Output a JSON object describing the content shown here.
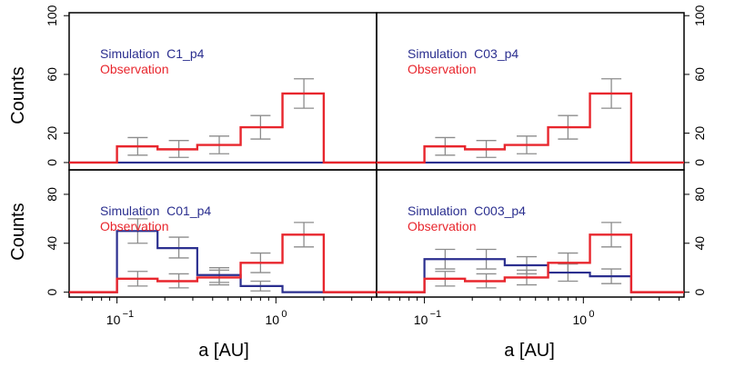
{
  "colors": {
    "simulation": "#2b2f8f",
    "observation": "#e8262d",
    "error_bar": "#8c8c8c",
    "frame": "#000000"
  },
  "chart_data": [
    {
      "type": "step-histogram",
      "panel": "top-left",
      "x_scale": "log",
      "xlim": [
        0.05,
        4.3
      ],
      "ylim": [
        -5,
        102
      ],
      "y_ticks": [
        "0",
        "20",
        "60",
        "100"
      ],
      "y_tick_values": [
        0,
        20,
        60,
        100
      ],
      "ylabel": "Counts",
      "bin_edges": [
        0.1,
        0.18,
        0.32,
        0.6,
        1.1,
        2.0
      ],
      "series": [
        {
          "name": "Simulation  C1_p4",
          "values": [
            0,
            0,
            0,
            0,
            0
          ]
        },
        {
          "name": "Observation",
          "values": [
            11,
            9,
            12,
            24,
            47
          ]
        }
      ],
      "error_bars": [
        {
          "x": 0.135,
          "center": 11,
          "low": 5,
          "high": 17
        },
        {
          "x": 0.245,
          "center": 9,
          "low": 3.5,
          "high": 15
        },
        {
          "x": 0.44,
          "center": 12,
          "low": 6,
          "high": 18
        },
        {
          "x": 0.8,
          "center": 24,
          "low": 16,
          "high": 32
        },
        {
          "x": 1.5,
          "center": 47,
          "low": 37,
          "high": 57
        }
      ]
    },
    {
      "type": "step-histogram",
      "panel": "top-right",
      "x_scale": "log",
      "xlim": [
        0.05,
        4.3
      ],
      "ylim": [
        -5,
        102
      ],
      "y_ticks": [
        "0",
        "20",
        "60",
        "100"
      ],
      "y_tick_values": [
        0,
        20,
        60,
        100
      ],
      "bin_edges": [
        0.1,
        0.18,
        0.32,
        0.6,
        1.1,
        2.0
      ],
      "series": [
        {
          "name": "Simulation  C03_p4",
          "values": [
            0,
            0,
            0,
            0,
            0
          ]
        },
        {
          "name": "Observation",
          "values": [
            11,
            9,
            12,
            24,
            47
          ]
        }
      ],
      "error_bars": [
        {
          "x": 0.135,
          "center": 11,
          "low": 5,
          "high": 17
        },
        {
          "x": 0.245,
          "center": 9,
          "low": 3.5,
          "high": 15
        },
        {
          "x": 0.44,
          "center": 12,
          "low": 6,
          "high": 18
        },
        {
          "x": 0.8,
          "center": 24,
          "low": 16,
          "high": 32
        },
        {
          "x": 1.5,
          "center": 47,
          "low": 37,
          "high": 57
        }
      ]
    },
    {
      "type": "step-histogram",
      "panel": "bottom-left",
      "x_scale": "log",
      "xlim": [
        0.05,
        4.3
      ],
      "ylim": [
        -4,
        100
      ],
      "y_ticks": [
        "0",
        "40",
        "80"
      ],
      "y_tick_values": [
        0,
        40,
        80
      ],
      "x_ticks": [
        "10",
        "10"
      ],
      "x_tick_exponents": [
        "−1",
        "0"
      ],
      "x_tick_values": [
        0.1,
        1
      ],
      "xlabel": "a [AU]",
      "ylabel": "Counts",
      "bin_edges": [
        0.1,
        0.18,
        0.32,
        0.6,
        1.1,
        2.0
      ],
      "series": [
        {
          "name": "Simulation  C01_p4",
          "values": [
            50,
            36,
            14,
            5,
            0
          ]
        },
        {
          "name": "Observation",
          "values": [
            11,
            9,
            12,
            24,
            47
          ]
        }
      ],
      "error_bars": [
        {
          "x": 0.135,
          "center": 50,
          "low": 40,
          "high": 60
        },
        {
          "x": 0.245,
          "center": 36,
          "low": 28,
          "high": 45
        },
        {
          "x": 0.44,
          "center": 14,
          "low": 8,
          "high": 20
        },
        {
          "x": 0.8,
          "center": 5,
          "low": 1,
          "high": 9
        },
        {
          "x": 0.135,
          "center": 11,
          "low": 5,
          "high": 17
        },
        {
          "x": 0.245,
          "center": 9,
          "low": 3.5,
          "high": 15
        },
        {
          "x": 0.44,
          "center": 12,
          "low": 6,
          "high": 18
        },
        {
          "x": 0.8,
          "center": 24,
          "low": 16,
          "high": 32
        },
        {
          "x": 1.5,
          "center": 47,
          "low": 37,
          "high": 57
        }
      ]
    },
    {
      "type": "step-histogram",
      "panel": "bottom-right",
      "x_scale": "log",
      "xlim": [
        0.05,
        4.3
      ],
      "ylim": [
        -4,
        100
      ],
      "y_ticks": [
        "0",
        "40",
        "80"
      ],
      "y_tick_values": [
        0,
        40,
        80
      ],
      "x_ticks": [
        "10",
        "10"
      ],
      "x_tick_exponents": [
        "−1",
        "0"
      ],
      "x_tick_values": [
        0.1,
        1
      ],
      "xlabel": "a [AU]",
      "bin_edges": [
        0.1,
        0.18,
        0.32,
        0.6,
        1.1,
        2.0
      ],
      "series": [
        {
          "name": "Simulation  C003_p4",
          "values": [
            27,
            27,
            22,
            16,
            13
          ]
        },
        {
          "name": "Observation",
          "values": [
            11,
            9,
            12,
            24,
            47
          ]
        }
      ],
      "error_bars": [
        {
          "x": 0.135,
          "center": 27,
          "low": 19,
          "high": 35
        },
        {
          "x": 0.245,
          "center": 27,
          "low": 19,
          "high": 35
        },
        {
          "x": 0.44,
          "center": 22,
          "low": 15,
          "high": 29
        },
        {
          "x": 0.8,
          "center": 16,
          "low": 9,
          "high": 23
        },
        {
          "x": 1.5,
          "center": 13,
          "low": 7,
          "high": 19
        },
        {
          "x": 0.135,
          "center": 11,
          "low": 5,
          "high": 17
        },
        {
          "x": 0.245,
          "center": 9,
          "low": 3.5,
          "high": 15
        },
        {
          "x": 0.44,
          "center": 12,
          "low": 6,
          "high": 18
        },
        {
          "x": 0.8,
          "center": 24,
          "low": 16,
          "high": 32
        },
        {
          "x": 1.5,
          "center": 47,
          "low": 37,
          "high": 57
        }
      ]
    }
  ]
}
